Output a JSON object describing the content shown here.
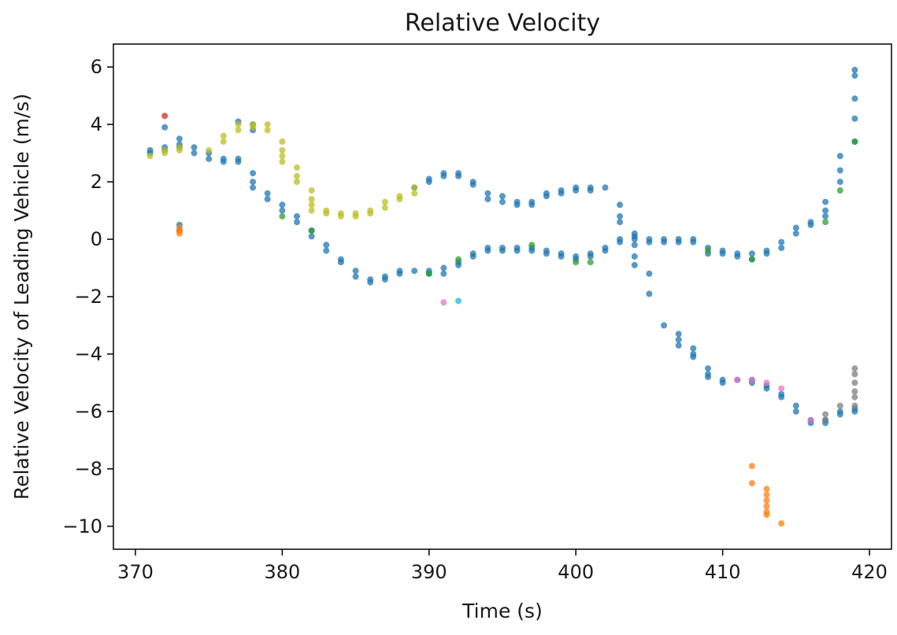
{
  "chart_data": {
    "type": "scatter",
    "title": "Relative Velocity",
    "xlabel": "Time (s)",
    "ylabel": "Relative Velocity of Leading Vehicle (m/s)",
    "xlim": [
      368.5,
      421.5
    ],
    "ylim": [
      -10.8,
      6.8
    ],
    "xticks": [
      370,
      380,
      390,
      400,
      410,
      420
    ],
    "yticks": [
      6,
      4,
      2,
      0,
      -2,
      -4,
      -6,
      -8,
      -10
    ],
    "xtick_labels": [
      "370",
      "380",
      "390",
      "400",
      "410",
      "420"
    ],
    "ytick_labels": [
      "6",
      "4",
      "2",
      "0",
      "−2",
      "−4",
      "−6",
      "−8",
      "−10"
    ],
    "grid": false,
    "legend": "none",
    "series": [
      {
        "color": "#1f77b4",
        "points": [
          [
            371,
            3.0
          ],
          [
            371,
            3.1
          ],
          [
            372,
            3.1
          ],
          [
            372,
            3.2
          ],
          [
            372,
            3.9
          ],
          [
            373,
            3.3
          ],
          [
            373,
            3.5
          ],
          [
            373,
            3.2
          ],
          [
            373,
            0.5
          ],
          [
            373,
            0.3
          ],
          [
            374,
            3.0
          ],
          [
            374,
            3.2
          ],
          [
            375,
            2.8
          ],
          [
            375,
            3.0
          ],
          [
            376,
            2.7
          ],
          [
            376,
            2.8
          ],
          [
            377,
            2.7
          ],
          [
            377,
            2.8
          ],
          [
            377,
            4.1
          ],
          [
            378,
            3.8
          ],
          [
            378,
            4.0
          ],
          [
            378,
            2.3
          ],
          [
            378,
            2.0
          ],
          [
            378,
            1.8
          ],
          [
            379,
            1.6
          ],
          [
            379,
            1.4
          ],
          [
            380,
            1.2
          ],
          [
            380,
            1.0
          ],
          [
            381,
            0.8
          ],
          [
            381,
            0.6
          ],
          [
            382,
            0.3
          ],
          [
            382,
            0.1
          ],
          [
            383,
            -0.2
          ],
          [
            383,
            -0.4
          ],
          [
            384,
            -0.7
          ],
          [
            384,
            -0.8
          ],
          [
            385,
            -1.1
          ],
          [
            385,
            -1.3
          ],
          [
            386,
            -1.4
          ],
          [
            386,
            -1.5
          ],
          [
            387,
            -1.4
          ],
          [
            387,
            -1.3
          ],
          [
            388,
            -1.2
          ],
          [
            388,
            -1.1
          ],
          [
            389,
            -1.1
          ],
          [
            390,
            -1.1
          ],
          [
            390,
            -1.2
          ],
          [
            391,
            -1.0
          ],
          [
            391,
            -1.2
          ],
          [
            392,
            -0.8
          ],
          [
            392,
            -0.9
          ],
          [
            393,
            -0.6
          ],
          [
            393,
            -0.5
          ],
          [
            394,
            -0.4
          ],
          [
            394,
            -0.3
          ],
          [
            395,
            -0.3
          ],
          [
            395,
            -0.4
          ],
          [
            396,
            -0.3
          ],
          [
            396,
            -0.4
          ],
          [
            397,
            -0.3
          ],
          [
            397,
            -0.4
          ],
          [
            398,
            -0.4
          ],
          [
            398,
            -0.5
          ],
          [
            399,
            -0.5
          ],
          [
            399,
            -0.6
          ],
          [
            400,
            -0.6
          ],
          [
            400,
            -0.7
          ],
          [
            401,
            -0.6
          ],
          [
            401,
            -0.5
          ],
          [
            402,
            -0.3
          ],
          [
            402,
            -0.4
          ],
          [
            403,
            -0.1
          ],
          [
            403,
            0.0
          ],
          [
            404,
            0.0
          ],
          [
            404,
            0.2
          ],
          [
            389,
            1.8
          ],
          [
            390,
            2.0
          ],
          [
            390,
            2.1
          ],
          [
            391,
            2.3
          ],
          [
            391,
            2.2
          ],
          [
            392,
            2.3
          ],
          [
            392,
            2.2
          ],
          [
            393,
            2.0
          ],
          [
            393,
            1.9
          ],
          [
            394,
            1.6
          ],
          [
            394,
            1.4
          ],
          [
            395,
            1.5
          ],
          [
            395,
            1.3
          ],
          [
            396,
            1.3
          ],
          [
            396,
            1.2
          ],
          [
            397,
            1.3
          ],
          [
            397,
            1.2
          ],
          [
            398,
            1.5
          ],
          [
            398,
            1.6
          ],
          [
            399,
            1.6
          ],
          [
            399,
            1.7
          ],
          [
            400,
            1.8
          ],
          [
            400,
            1.7
          ],
          [
            401,
            1.8
          ],
          [
            401,
            1.7
          ],
          [
            402,
            1.8
          ],
          [
            403,
            1.2
          ],
          [
            403,
            0.8
          ],
          [
            403,
            0.6
          ],
          [
            404,
            0.1
          ],
          [
            404,
            -0.2
          ],
          [
            404,
            -0.6
          ],
          [
            404,
            -0.9
          ],
          [
            405,
            -1.2
          ],
          [
            405,
            -1.9
          ],
          [
            406,
            -3.0
          ],
          [
            407,
            -3.3
          ],
          [
            407,
            -3.5
          ],
          [
            407,
            -3.7
          ],
          [
            408,
            -3.8
          ],
          [
            408,
            -4.0
          ],
          [
            408,
            -4.1
          ],
          [
            409,
            -4.5
          ],
          [
            409,
            -4.7
          ],
          [
            409,
            -4.8
          ],
          [
            410,
            -4.9
          ],
          [
            410,
            -5.0
          ],
          [
            411,
            -4.9
          ],
          [
            412,
            -4.9
          ],
          [
            412,
            -5.0
          ],
          [
            413,
            -5.1
          ],
          [
            413,
            -5.2
          ],
          [
            414,
            -5.4
          ],
          [
            414,
            -5.5
          ],
          [
            415,
            -5.8
          ],
          [
            415,
            -6.0
          ],
          [
            416,
            -6.3
          ],
          [
            416,
            -6.4
          ],
          [
            417,
            -6.3
          ],
          [
            417,
            -6.4
          ],
          [
            418,
            -6.0
          ],
          [
            418,
            -6.1
          ],
          [
            419,
            -5.9
          ],
          [
            419,
            -6.0
          ],
          [
            405,
            0.0
          ],
          [
            405,
            -0.1
          ],
          [
            406,
            0.0
          ],
          [
            406,
            -0.1
          ],
          [
            407,
            0.0
          ],
          [
            407,
            -0.1
          ],
          [
            408,
            0.0
          ],
          [
            408,
            -0.1
          ],
          [
            409,
            -0.3
          ],
          [
            409,
            -0.5
          ],
          [
            410,
            -0.4
          ],
          [
            410,
            -0.5
          ],
          [
            411,
            -0.5
          ],
          [
            411,
            -0.6
          ],
          [
            412,
            -0.5
          ],
          [
            412,
            -0.7
          ],
          [
            413,
            -0.5
          ],
          [
            413,
            -0.4
          ],
          [
            414,
            -0.3
          ],
          [
            414,
            -0.1
          ],
          [
            415,
            0.2
          ],
          [
            415,
            0.4
          ],
          [
            416,
            0.6
          ],
          [
            416,
            0.5
          ],
          [
            417,
            0.8
          ],
          [
            417,
            1.0
          ],
          [
            417,
            1.3
          ],
          [
            418,
            2.0
          ],
          [
            418,
            2.4
          ],
          [
            418,
            2.9
          ],
          [
            419,
            3.4
          ],
          [
            419,
            4.2
          ],
          [
            419,
            4.9
          ],
          [
            419,
            5.7
          ],
          [
            419,
            5.9
          ]
        ]
      },
      {
        "color": "#ff7f0e",
        "points": [
          [
            373,
            0.4
          ],
          [
            373,
            0.3
          ],
          [
            373,
            0.2
          ],
          [
            412,
            -7.9
          ],
          [
            412,
            -8.5
          ],
          [
            413,
            -8.7
          ],
          [
            413,
            -8.9
          ],
          [
            413,
            -9.1
          ],
          [
            413,
            -9.3
          ],
          [
            413,
            -9.5
          ],
          [
            413,
            -9.6
          ],
          [
            414,
            -9.9
          ]
        ]
      },
      {
        "color": "#2ca02c",
        "points": [
          [
            380,
            0.8
          ],
          [
            382,
            0.3
          ],
          [
            390,
            -1.2
          ],
          [
            392,
            -0.7
          ],
          [
            397,
            -0.2
          ],
          [
            400,
            -0.8
          ],
          [
            401,
            -0.8
          ],
          [
            409,
            -0.4
          ],
          [
            412,
            -0.7
          ],
          [
            417,
            0.6
          ],
          [
            418,
            1.7
          ],
          [
            419,
            3.4
          ]
        ]
      },
      {
        "color": "#d62728",
        "points": [
          [
            372,
            4.3
          ]
        ]
      },
      {
        "color": "#e377c2",
        "points": [
          [
            391,
            -2.2
          ],
          [
            411,
            -4.9
          ],
          [
            412,
            -4.9
          ],
          [
            413,
            -5.0
          ],
          [
            414,
            -5.2
          ],
          [
            416,
            -6.3
          ]
        ]
      },
      {
        "color": "#7f7f7f",
        "points": [
          [
            417,
            -6.1
          ],
          [
            417,
            -6.3
          ],
          [
            418,
            -5.8
          ],
          [
            419,
            -4.5
          ],
          [
            419,
            -4.7
          ],
          [
            419,
            -5.0
          ],
          [
            419,
            -5.3
          ],
          [
            419,
            -5.5
          ],
          [
            419,
            -5.8
          ]
        ]
      },
      {
        "color": "#17becf",
        "points": [
          [
            392,
            -2.15
          ]
        ]
      },
      {
        "color": "#bcbd22",
        "points": [
          [
            371,
            2.9
          ],
          [
            372,
            3.0
          ],
          [
            372,
            3.1
          ],
          [
            373,
            3.1
          ],
          [
            373,
            3.2
          ],
          [
            375,
            3.1
          ],
          [
            376,
            3.4
          ],
          [
            376,
            3.6
          ],
          [
            377,
            3.8
          ],
          [
            377,
            4.0
          ],
          [
            378,
            3.9
          ],
          [
            378,
            4.0
          ],
          [
            379,
            3.8
          ],
          [
            379,
            4.0
          ],
          [
            380,
            3.4
          ],
          [
            380,
            3.1
          ],
          [
            380,
            2.9
          ],
          [
            380,
            2.7
          ],
          [
            381,
            2.5
          ],
          [
            381,
            2.2
          ],
          [
            381,
            2.0
          ],
          [
            382,
            1.7
          ],
          [
            382,
            1.4
          ],
          [
            382,
            1.2
          ],
          [
            382,
            1.0
          ],
          [
            383,
            1.0
          ],
          [
            383,
            0.9
          ],
          [
            384,
            0.8
          ],
          [
            384,
            0.9
          ],
          [
            385,
            0.8
          ],
          [
            385,
            0.9
          ],
          [
            386,
            0.9
          ],
          [
            386,
            1.0
          ],
          [
            387,
            1.1
          ],
          [
            387,
            1.3
          ],
          [
            388,
            1.4
          ],
          [
            388,
            1.5
          ],
          [
            389,
            1.6
          ],
          [
            389,
            1.8
          ]
        ]
      }
    ]
  }
}
